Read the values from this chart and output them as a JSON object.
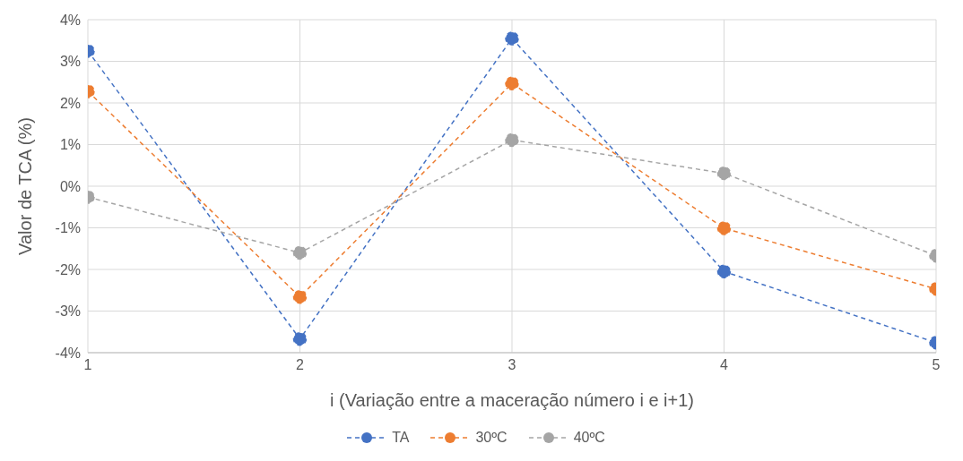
{
  "chart_data": {
    "type": "line",
    "xlabel": "i (Variação entre a maceração número i e i+1)",
    "ylabel": "Valor de TCA (%)",
    "x": [
      1,
      2,
      3,
      4,
      5
    ],
    "xlim": [
      1,
      5
    ],
    "xticks": [
      1,
      2,
      3,
      4,
      5
    ],
    "ylim": [
      -4,
      4
    ],
    "yticks": [
      {
        "value": -4,
        "label": "-4%"
      },
      {
        "value": -3,
        "label": "-3%"
      },
      {
        "value": -2,
        "label": "-2%"
      },
      {
        "value": -1,
        "label": "-1%"
      },
      {
        "value": 0,
        "label": "0%"
      },
      {
        "value": 1,
        "label": "1%"
      },
      {
        "value": 2,
        "label": "2%"
      },
      {
        "value": 3,
        "label": "3%"
      },
      {
        "value": 4,
        "label": "4%"
      }
    ],
    "series": [
      {
        "name": "TA",
        "color": "#4472c4",
        "values": [
          3.25,
          -3.67,
          3.55,
          -2.05,
          -3.76
        ]
      },
      {
        "name": "30ºC",
        "color": "#ed7d31",
        "values": [
          2.28,
          -2.66,
          2.47,
          -1.01,
          -2.47
        ]
      },
      {
        "name": "40ºC",
        "color": "#a5a5a5",
        "values": [
          -0.26,
          -1.6,
          1.11,
          0.31,
          -1.67
        ]
      }
    ],
    "grid": true,
    "legend": "bottom",
    "marker": "circle",
    "line_style": "dashed"
  }
}
